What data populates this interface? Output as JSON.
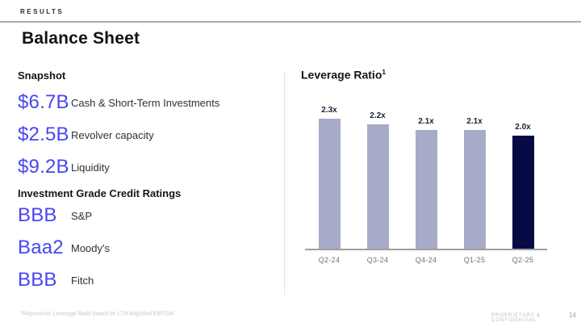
{
  "header": {
    "eyebrow": "RESULTS",
    "title": "Balance Sheet"
  },
  "snapshot": {
    "heading": "Snapshot",
    "stats": [
      {
        "value": "$6.7B",
        "label": "Cash & Short-Term Investments"
      },
      {
        "value": "$2.5B",
        "label": "Revolver capacity"
      },
      {
        "value": "$9.2B",
        "label": "Liquidity"
      }
    ]
  },
  "ratings": {
    "heading": "Investment Grade Credit Ratings",
    "items": [
      {
        "value": "BBB",
        "label": "S&P"
      },
      {
        "value": "Baa2",
        "label": "Moody's"
      },
      {
        "value": "BBB",
        "label": "Fitch"
      }
    ]
  },
  "chart_data": {
    "type": "bar",
    "title": "Leverage Ratio",
    "title_superscript": "1",
    "categories": [
      "Q2-24",
      "Q3-24",
      "Q4-24",
      "Q1-25",
      "Q2-25"
    ],
    "values": [
      2.3,
      2.2,
      2.1,
      2.1,
      2.0
    ],
    "value_labels": [
      "2.3x",
      "2.2x",
      "2.1x",
      "2.1x",
      "2.0x"
    ],
    "bar_colors": [
      "#A6ABC8",
      "#A6ABC8",
      "#A6ABC8",
      "#A6ABC8",
      "#080A45"
    ],
    "highlight_index": 4,
    "ylim": [
      0,
      2.5
    ],
    "grid": false,
    "legend": false,
    "xlabel": "",
    "ylabel": ""
  },
  "footer": {
    "footnote_superscript": "1",
    "footnote": "Represents Leverage Ratio based on LTM Adjusted EBITDA",
    "confidential": "PROPRIETARY & CONFIDENTIAL",
    "page_number": "14"
  },
  "colors": {
    "accent": "#4845F2",
    "bar": "#A6ABC8",
    "bar_highlight": "#080A45",
    "axis": "#9D9FA4"
  }
}
